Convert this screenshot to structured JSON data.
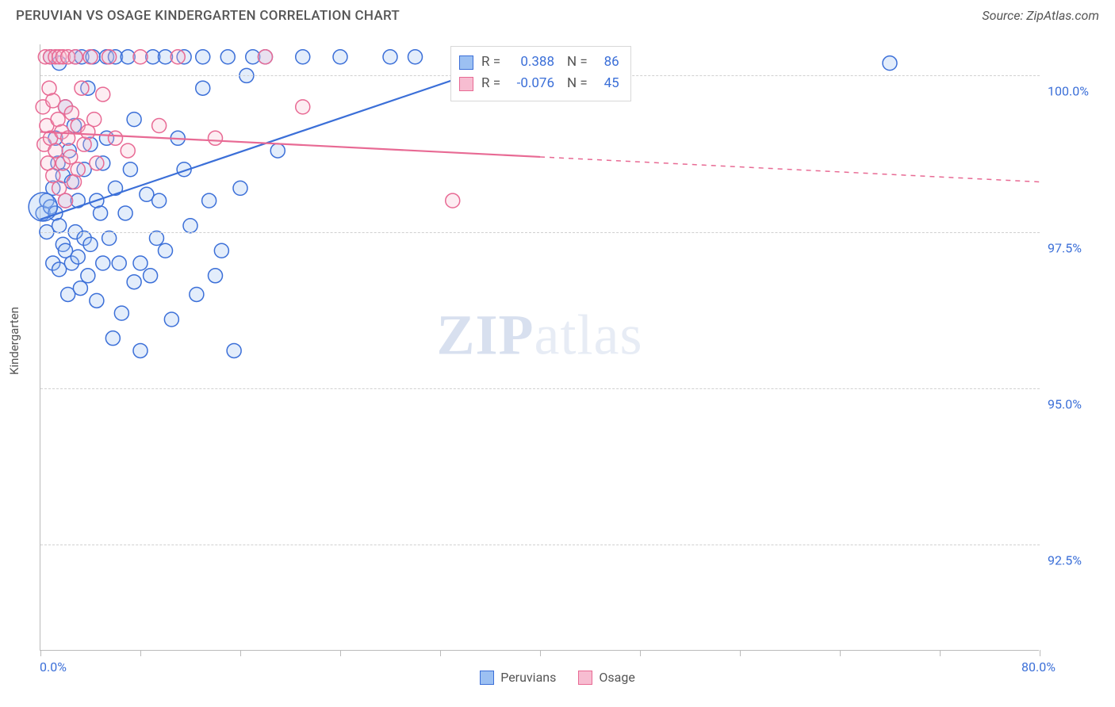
{
  "header": {
    "title": "PERUVIAN VS OSAGE KINDERGARTEN CORRELATION CHART",
    "source": "Source: ZipAtlas.com"
  },
  "watermark": {
    "bold": "ZIP",
    "rest": "atlas"
  },
  "chart": {
    "type": "scatter",
    "yaxis_title": "Kindergarten",
    "background_color": "#ffffff",
    "grid_color": "#d0d0d0",
    "axis_color": "#bbbbbb",
    "tick_label_color": "#3b6fd8",
    "xlim": [
      0,
      80
    ],
    "ylim": [
      90.8,
      100.5
    ],
    "x_min_label": "0.0%",
    "x_max_label": "80.0%",
    "xticks": [
      0,
      8,
      16,
      24,
      32,
      40,
      48,
      56,
      64,
      72,
      80
    ],
    "yticks": [
      {
        "v": 100.0,
        "label": "100.0%"
      },
      {
        "v": 97.5,
        "label": "97.5%"
      },
      {
        "v": 95.0,
        "label": "95.0%"
      },
      {
        "v": 92.5,
        "label": "92.5%"
      }
    ],
    "marker_radius": 9,
    "marker_stroke_width": 1.5,
    "marker_fill_opacity": 0.28,
    "line_width": 2.2,
    "series": [
      {
        "name": "Peruvians",
        "legend_label": "Peruvians",
        "color_stroke": "#3b6fd8",
        "color_fill": "#9cc0f2",
        "R": "0.388",
        "N": "86",
        "trend": {
          "x1": 0,
          "y1": 97.7,
          "x2_solid": 40,
          "y2_solid": 100.4,
          "dash_after": false
        },
        "points": [
          [
            0.2,
            97.8
          ],
          [
            0.5,
            98.0
          ],
          [
            0.5,
            97.5
          ],
          [
            0.8,
            97.9
          ],
          [
            0.8,
            100.3
          ],
          [
            1.0,
            98.2
          ],
          [
            1.0,
            97.0
          ],
          [
            1.2,
            97.8
          ],
          [
            1.2,
            99.0
          ],
          [
            1.4,
            98.6
          ],
          [
            1.5,
            97.6
          ],
          [
            1.5,
            100.2
          ],
          [
            1.5,
            96.9
          ],
          [
            1.8,
            98.4
          ],
          [
            1.8,
            97.3
          ],
          [
            2.0,
            97.2
          ],
          [
            2.0,
            99.5
          ],
          [
            2.0,
            98.0
          ],
          [
            2.2,
            96.5
          ],
          [
            2.3,
            98.8
          ],
          [
            2.5,
            98.3
          ],
          [
            2.5,
            97.0
          ],
          [
            2.7,
            99.2
          ],
          [
            2.8,
            97.5
          ],
          [
            2.8,
            100.3
          ],
          [
            3.0,
            97.1
          ],
          [
            3.0,
            98.0
          ],
          [
            3.2,
            96.6
          ],
          [
            3.3,
            100.3
          ],
          [
            3.5,
            98.5
          ],
          [
            3.5,
            97.4
          ],
          [
            3.8,
            99.8
          ],
          [
            3.8,
            96.8
          ],
          [
            4.0,
            97.3
          ],
          [
            4.0,
            98.9
          ],
          [
            4.2,
            100.3
          ],
          [
            4.5,
            98.0
          ],
          [
            4.5,
            96.4
          ],
          [
            4.8,
            97.8
          ],
          [
            5.0,
            98.6
          ],
          [
            5.0,
            97.0
          ],
          [
            5.3,
            99.0
          ],
          [
            5.3,
            100.3
          ],
          [
            5.5,
            97.4
          ],
          [
            5.8,
            95.8
          ],
          [
            6.0,
            98.2
          ],
          [
            6.0,
            100.3
          ],
          [
            6.3,
            97.0
          ],
          [
            6.5,
            96.2
          ],
          [
            6.8,
            97.8
          ],
          [
            7.0,
            100.3
          ],
          [
            7.2,
            98.5
          ],
          [
            7.5,
            96.7
          ],
          [
            7.5,
            99.3
          ],
          [
            8.0,
            97.0
          ],
          [
            8.0,
            95.6
          ],
          [
            8.5,
            98.1
          ],
          [
            8.8,
            96.8
          ],
          [
            9.0,
            100.3
          ],
          [
            9.3,
            97.4
          ],
          [
            9.5,
            98.0
          ],
          [
            10.0,
            97.2
          ],
          [
            10.0,
            100.3
          ],
          [
            10.5,
            96.1
          ],
          [
            11.0,
            99.0
          ],
          [
            11.5,
            98.5
          ],
          [
            11.5,
            100.3
          ],
          [
            12.0,
            97.6
          ],
          [
            12.5,
            96.5
          ],
          [
            13.0,
            99.8
          ],
          [
            13.0,
            100.3
          ],
          [
            13.5,
            98.0
          ],
          [
            14.0,
            96.8
          ],
          [
            14.5,
            97.2
          ],
          [
            15.0,
            100.3
          ],
          [
            15.5,
            95.6
          ],
          [
            16.0,
            98.2
          ],
          [
            16.5,
            100.0
          ],
          [
            17.0,
            100.3
          ],
          [
            18.0,
            100.3
          ],
          [
            19.0,
            98.8
          ],
          [
            21.0,
            100.3
          ],
          [
            24.0,
            100.3
          ],
          [
            28.0,
            100.3
          ],
          [
            30.0,
            100.3
          ],
          [
            68.0,
            100.2
          ]
        ]
      },
      {
        "name": "Osage",
        "legend_label": "Osage",
        "color_stroke": "#e86a94",
        "color_fill": "#f7bdd1",
        "R": "-0.076",
        "N": "45",
        "trend": {
          "x1": 0,
          "y1": 99.1,
          "x2_solid": 40,
          "y2_solid": 98.7,
          "x2_dash": 80,
          "y2_dash": 98.3,
          "dash_after": true
        },
        "points": [
          [
            0.2,
            99.5
          ],
          [
            0.3,
            98.9
          ],
          [
            0.4,
            100.3
          ],
          [
            0.5,
            99.2
          ],
          [
            0.6,
            98.6
          ],
          [
            0.7,
            99.8
          ],
          [
            0.8,
            99.0
          ],
          [
            0.8,
            100.3
          ],
          [
            1.0,
            98.4
          ],
          [
            1.0,
            99.6
          ],
          [
            1.2,
            100.3
          ],
          [
            1.2,
            98.8
          ],
          [
            1.4,
            99.3
          ],
          [
            1.5,
            100.3
          ],
          [
            1.5,
            98.2
          ],
          [
            1.7,
            99.1
          ],
          [
            1.8,
            100.3
          ],
          [
            1.8,
            98.6
          ],
          [
            2.0,
            99.5
          ],
          [
            2.0,
            98.0
          ],
          [
            2.2,
            99.0
          ],
          [
            2.2,
            100.3
          ],
          [
            2.4,
            98.7
          ],
          [
            2.5,
            99.4
          ],
          [
            2.7,
            98.3
          ],
          [
            2.8,
            100.3
          ],
          [
            3.0,
            99.2
          ],
          [
            3.0,
            98.5
          ],
          [
            3.3,
            99.8
          ],
          [
            3.5,
            98.9
          ],
          [
            3.8,
            99.1
          ],
          [
            4.0,
            100.3
          ],
          [
            4.3,
            99.3
          ],
          [
            4.5,
            98.6
          ],
          [
            5.0,
            99.7
          ],
          [
            5.5,
            100.3
          ],
          [
            6.0,
            99.0
          ],
          [
            7.0,
            98.8
          ],
          [
            8.0,
            100.3
          ],
          [
            9.5,
            99.2
          ],
          [
            11.0,
            100.3
          ],
          [
            14.0,
            99.0
          ],
          [
            18.0,
            100.3
          ],
          [
            21.0,
            99.5
          ],
          [
            33.0,
            98.0
          ]
        ]
      }
    ]
  },
  "stats_box": {
    "r_label": "R =",
    "n_label": "N ="
  }
}
